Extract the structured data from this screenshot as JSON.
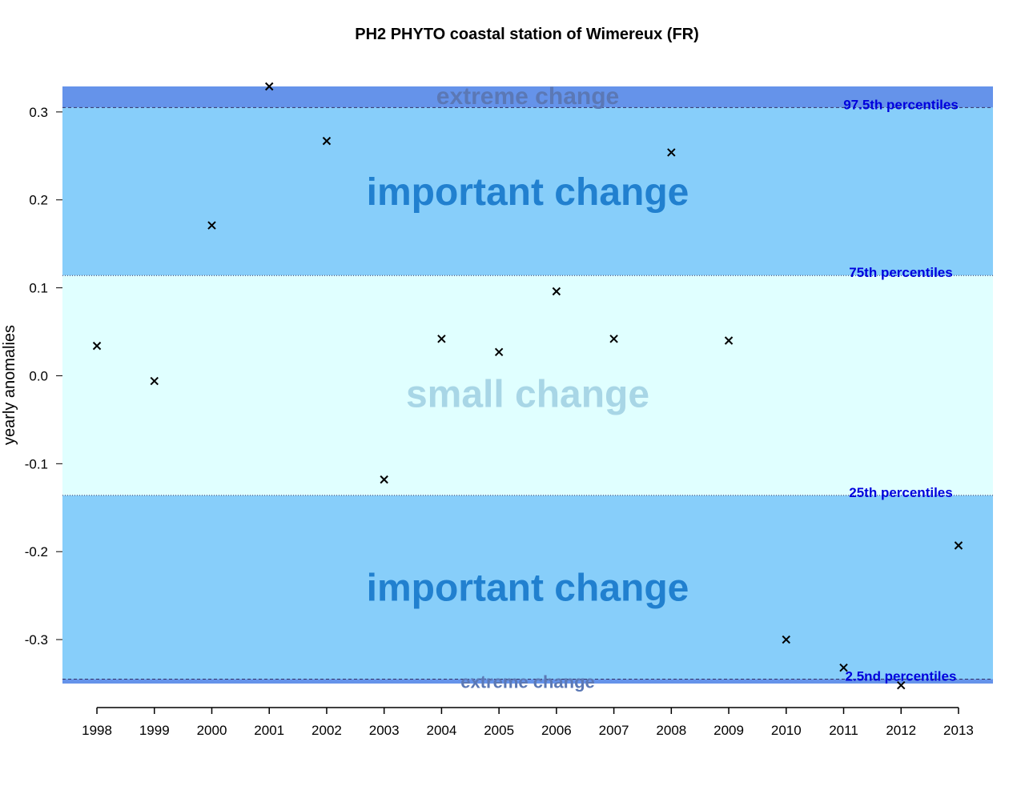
{
  "chart_data": {
    "type": "scatter",
    "title": "PH2 PHYTO coastal station of Wimereux (FR)",
    "xlabel": "",
    "ylabel": "yearly anomalies",
    "x": [
      1998,
      1999,
      2000,
      2001,
      2002,
      2003,
      2004,
      2005,
      2006,
      2007,
      2008,
      2009,
      2010,
      2011,
      2012,
      2013
    ],
    "x_tick_labels": [
      "1998",
      "1999",
      "2000",
      "2001",
      "2002",
      "2003",
      "2004",
      "2005",
      "2006",
      "2007",
      "2008",
      "2009",
      "2010",
      "2011",
      "2012",
      "2013"
    ],
    "values": [
      0.034,
      -0.006,
      0.171,
      0.329,
      0.267,
      -0.118,
      0.042,
      0.027,
      0.096,
      0.042,
      0.254,
      0.04,
      -0.3,
      -0.332,
      -0.352,
      -0.193
    ],
    "xlim": [
      1997.4,
      2013.6
    ],
    "ylim": [
      -0.35,
      0.329
    ],
    "y_ticks": [
      0.3,
      0.2,
      0.1,
      0.0,
      -0.1,
      -0.2,
      -0.3
    ],
    "y_tick_labels": [
      "0.3",
      "0.2",
      "0.1",
      "0.0",
      "-0.1",
      "-0.2",
      "-0.3"
    ],
    "thresholds": [
      {
        "value": 0.305,
        "label": "97.5th percentiles",
        "style": "dashed"
      },
      {
        "value": 0.114,
        "label": "75th percentiles",
        "style": "dotted"
      },
      {
        "value": -0.136,
        "label": "25th percentiles",
        "style": "dotted"
      },
      {
        "value": -0.345,
        "label": "2.5nd percentiles",
        "style": "dashed"
      }
    ],
    "zones": [
      {
        "from": 0.305,
        "to": 0.329,
        "label": "extreme change",
        "fill": "#6593ea",
        "text_color": "#5b78b5"
      },
      {
        "from": 0.114,
        "to": 0.305,
        "label": "important change",
        "fill": "#87cefa",
        "text_color": "#2180cf"
      },
      {
        "from": -0.136,
        "to": 0.114,
        "label": "small change",
        "fill": "#e0ffff",
        "text_color": "#a8d6e6"
      },
      {
        "from": -0.345,
        "to": -0.136,
        "label": "important change",
        "fill": "#87cefa",
        "text_color": "#2180cf"
      },
      {
        "from": -0.35,
        "to": -0.345,
        "label": "extreme change",
        "fill": "#6593ea",
        "text_color": "#5b78b5"
      }
    ],
    "marker": "x",
    "marker_color": "#000000",
    "threshold_label_color": "#0000dd"
  }
}
